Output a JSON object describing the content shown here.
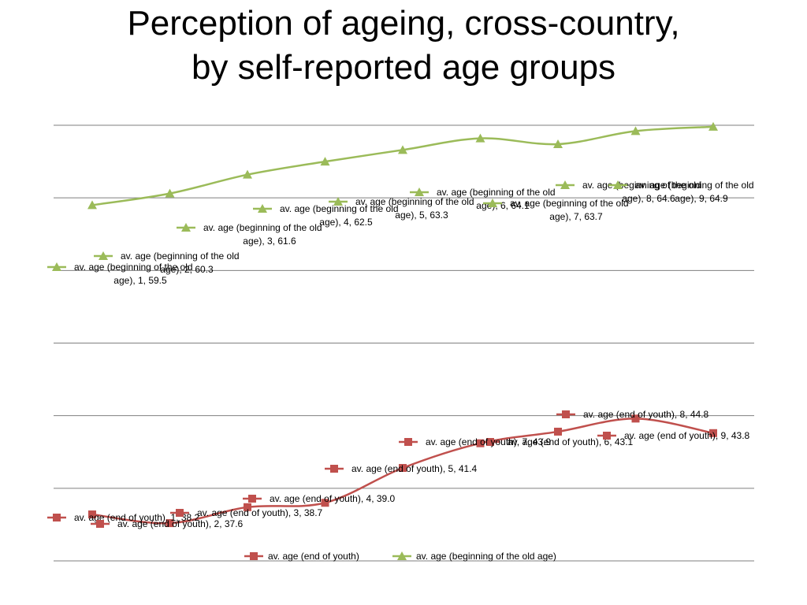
{
  "title_line1": "Perception of ageing, cross-country,",
  "title_line2": "by self-reported age groups",
  "chart_data": {
    "type": "line",
    "x": [
      1,
      2,
      3,
      4,
      5,
      6,
      7,
      8,
      9
    ],
    "series": [
      {
        "name": "av. age (end of youth)",
        "values": [
          38.2,
          37.6,
          38.7,
          39.0,
          41.4,
          43.1,
          43.9,
          44.8,
          43.8
        ],
        "color": "#C0504D",
        "marker": "square",
        "label_lines": [
          [
            "av. age (end of youth), 1, 38.2"
          ],
          [
            "av. age (end of youth), 2, 37.6"
          ],
          [
            "av. age (end of youth), 3, 38.7"
          ],
          [
            "av. age (end of youth), 4, 39.0"
          ],
          [
            "av. age (end of youth), 5, 41.4"
          ],
          [
            "av. age (end of youth), 6, 43.1"
          ],
          [
            "av. age (end of youth), 7, 43.9"
          ],
          [
            "av. age (end of youth), 8, 44.8"
          ],
          [
            "av. age (end of youth), 9, 43.8"
          ]
        ]
      },
      {
        "name": "av. age (beginning of the old age)",
        "values": [
          59.5,
          60.3,
          61.6,
          62.5,
          63.3,
          64.1,
          63.7,
          64.6,
          64.9
        ],
        "color": "#9BBB59",
        "marker": "triangle",
        "label_lines": [
          [
            "av. age (beginning of the old",
            "age), 1, 59.5"
          ],
          [
            "av. age (beginning of the old",
            "age), 2, 60.3"
          ],
          [
            "av. age (beginning of the old",
            "age), 3, 61.6"
          ],
          [
            "av. age (beginning of the old",
            "age), 4, 62.5"
          ],
          [
            "av. age (beginning of the old",
            "age), 5, 63.3"
          ],
          [
            "av. age (beginning of the old",
            "age), 6, 64.1"
          ],
          [
            "av. age (beginning of the old",
            "age), 7, 63.7"
          ],
          [
            "av. age (beginning of the old",
            "age), 8, 64.6"
          ],
          [
            "av. age (beginning of the old",
            "age), 9, 64.9"
          ]
        ]
      }
    ],
    "ylim": [
      35,
      65
    ],
    "grid": true,
    "legend": "bottom"
  }
}
